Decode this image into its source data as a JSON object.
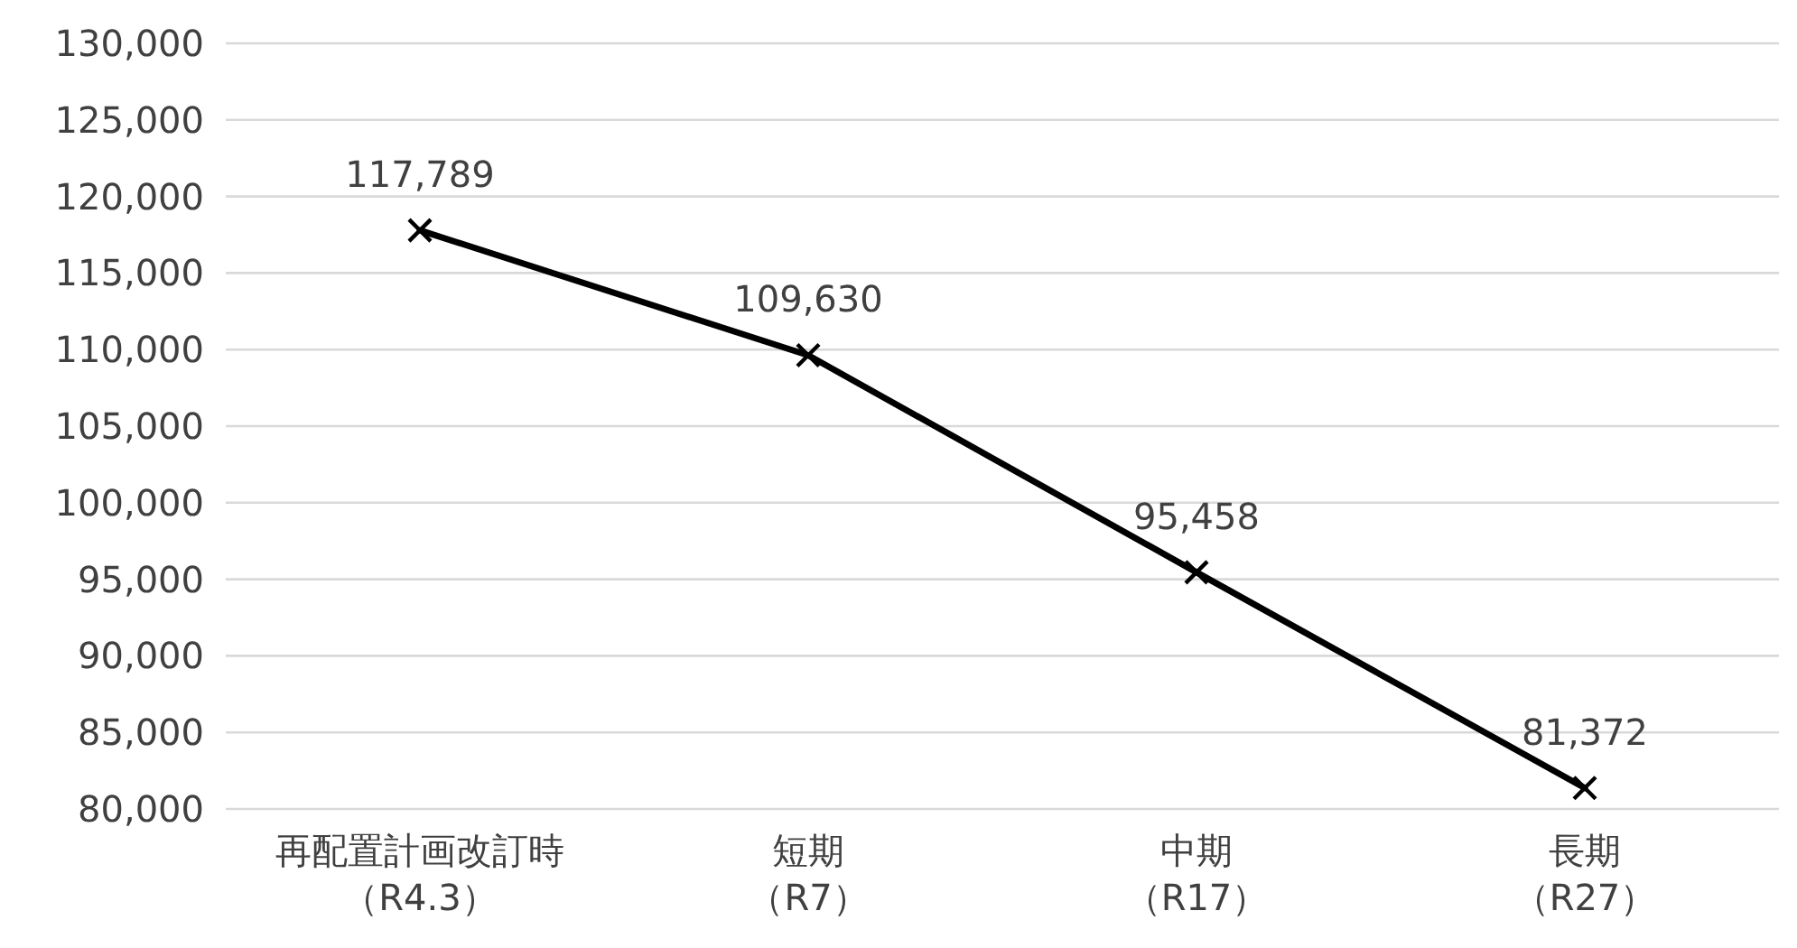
{
  "chart_data": {
    "type": "line",
    "categories": [
      "再配置計画改訂時（R4.3）",
      "短期（R7）",
      "中期（R17）",
      "長期（R27）"
    ],
    "series": [
      {
        "color": "#000000",
        "values": [
          117789,
          109630,
          95458,
          81372
        ],
        "value_labels": [
          "117,789",
          "109,630",
          "95,458",
          "81,372"
        ]
      }
    ],
    "ylim": [
      80000,
      130000
    ],
    "yticks": [
      {
        "value": 80000,
        "label": "80,000"
      },
      {
        "value": 85000,
        "label": "85,000"
      },
      {
        "value": 90000,
        "label": "90,000"
      },
      {
        "value": 95000,
        "label": "95,000"
      },
      {
        "value": 100000,
        "label": "100,000"
      },
      {
        "value": 105000,
        "label": "105,000"
      },
      {
        "value": 110000,
        "label": "110,000"
      },
      {
        "value": 115000,
        "label": "115,000"
      },
      {
        "value": 120000,
        "label": "120,000"
      },
      {
        "value": 125000,
        "label": "125,000"
      },
      {
        "value": 130000,
        "label": "130,000"
      }
    ],
    "grid": "y",
    "marker": "cross"
  }
}
